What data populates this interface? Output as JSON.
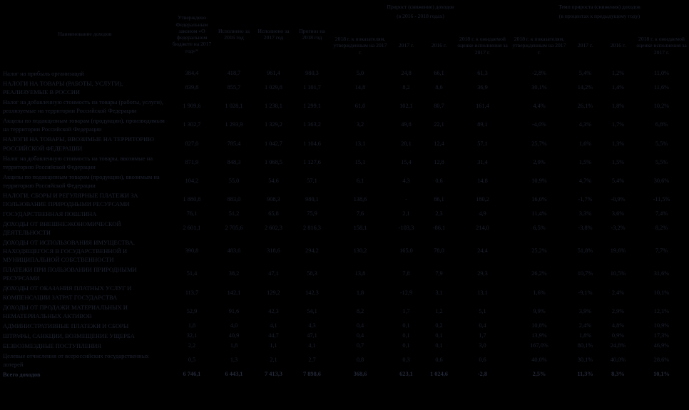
{
  "colors": {
    "background": "#000000",
    "text": "#1c212e"
  },
  "table": {
    "name_col_header": "Наименование доходов",
    "col_headers": {
      "approved_2017": "Утверждено Федеральным законом «О федеральном бюджете на 2017 год»*",
      "executed_2016": "Исполнено за 2016 год",
      "executed_2017": "Исполнено за 2017 год",
      "forecast_2018": "Прогноз на 2018 год"
    },
    "groups": [
      {
        "title": "Прирост (снижение) доходов",
        "subtitle": "(в 2016 - 2018 годах)",
        "subcols": [
          "2018 г. к показателям, утвержденным на 2017 г.",
          "2017 г.",
          "2016 г.",
          "2018 г. к ожидаемой оценке исполнения за 2017 г."
        ]
      },
      {
        "title": "Темп прироста (снижения) доходов",
        "subtitle": "(в процентах к предыдущему году)",
        "subcols": [
          "2018 г. к показателям, утвержденным на 2017 г.",
          "2017 г.",
          "2016 г.",
          "2018 г. к ожидаемой оценке исполнения за 2017 г."
        ]
      }
    ],
    "rows": [
      {
        "name": "Налог на прибыль организаций",
        "bold": false,
        "values": [
          "384,4",
          "418,7",
          "961,4",
          "980,3",
          "5,0",
          "24,8",
          "66,1",
          "61,3",
          "-2,8%",
          "5,4%",
          "1,2%",
          "11,0%"
        ]
      },
      {
        "name": "НАЛОГИ НА ТОВАРЫ (РАБОТЫ, УСЛУГИ), РЕАЛИЗУЕМЫЕ В РОССИИ",
        "bold": false,
        "values": [
          "839,8",
          "855,7",
          "1 029,8",
          "1 101,7",
          "14,8",
          "8,2",
          "8,6",
          "36,9",
          "30,1%",
          "14,2%",
          "1,4%",
          "11,6%"
        ]
      },
      {
        "name": "Налог на добавленную стоимость на товары (работы, услуги), реализуемые на территории Российской Федерации",
        "bold": false,
        "values": [
          "1 909,6",
          "1 028,1",
          "1 238,1",
          "1 299,1",
          "61,0",
          "102,1",
          "80,7",
          "161,4",
          "4,4%",
          "26,1%",
          "1,8%",
          "10,2%"
        ]
      },
      {
        "name": "Акцизы по подакцизным товарам (продукции), производимым на территории Российской Федерации",
        "bold": false,
        "values": [
          "1 302,7",
          "1 293,9",
          "1 329,2",
          "1 363,2",
          "3,2",
          "49,8",
          "22,1",
          "89,1",
          "-4,0%",
          "4,3%",
          "1,7%",
          "6,8%"
        ]
      },
      {
        "name": "НАЛОГИ НА ТОВАРЫ, ВВОЗИМЫЕ НА ТЕРРИТОРИЮ РОССИЙСКОЙ ФЕДЕРАЦИИ",
        "bold": false,
        "values": [
          "827,0",
          "785,4",
          "1 042,7",
          "1 104,6",
          "13,1",
          "28,1",
          "12,4",
          "57,1",
          "25,7%",
          "1,6%",
          "1,3%",
          "5,5%"
        ]
      },
      {
        "name": "Налог на добавленную стоимость на товары, ввозимые на территорию Российской Федерации",
        "bold": false,
        "values": [
          "871,9",
          "848,3",
          "1 068,5",
          "1 127,6",
          "15,1",
          "15,4",
          "12,8",
          "31,4",
          "2,9%",
          "1,5%",
          "1,5%",
          "5,5%"
        ]
      },
      {
        "name": "Акцизы по подакцизным товарам (продукции), ввозимым на территорию Российской Федерации",
        "bold": false,
        "values": [
          "104,2",
          "55,0",
          "54,6",
          "57,1",
          "6,1",
          "4,3",
          "0,6",
          "14,8",
          "10,9%",
          "4,7%",
          "5,4%",
          "30,6%"
        ]
      },
      {
        "name": "НАЛОГИ, СБОРЫ И РЕГУЛЯРНЫЕ ПЛАТЕЖИ ЗА ПОЛЬЗОВАНИЕ ПРИРОДНЫМИ РЕСУРСАМИ",
        "bold": false,
        "values": [
          "1 880,8",
          "883,0",
          "908,3",
          "980,1",
          "138,6",
          "-",
          "86,1",
          "180,2",
          "16,0%",
          "-1,7%",
          "-0,9%",
          "-11,5%"
        ]
      },
      {
        "name": "ГОСУДАРСТВЕННАЯ ПОШЛИНА",
        "bold": false,
        "values": [
          "76,1",
          "51,2",
          "65,8",
          "75,9",
          "7,6",
          "2,1",
          "2,3",
          "4,9",
          "11,4%",
          "3,3%",
          "3,6%",
          "7,4%"
        ]
      },
      {
        "name": "ДОХОДЫ ОТ ВНЕШНЕЭКОНОМИЧЕСКОЙ ДЕЯТЕЛЬНОСТИ",
        "bold": false,
        "values": [
          "2 601,1",
          "2 705,6",
          "2 602,3",
          "2 816,3",
          "158,1",
          "-103,3",
          "-86,1",
          "214,0",
          "6,5%",
          "-3,8%",
          "-3,2%",
          "8,2%"
        ]
      },
      {
        "name": "ДОХОДЫ ОТ ИСПОЛЬЗОВАНИЯ ИМУЩЕСТВА, НАХОДЯЩЕГОСЯ В ГОСУДАРСТВЕННОЙ И МУНИЦИПАЛЬНОЙ СОБСТВЕННОСТИ",
        "bold": false,
        "values": [
          "390,8",
          "483,6",
          "318,6",
          "294,2",
          "130,2",
          "165,0",
          "78,0",
          "24,4",
          "25,2%",
          "51,8%",
          "19,6%",
          "7,7%"
        ]
      },
      {
        "name": "ПЛАТЕЖИ ПРИ ПОЛЬЗОВАНИИ ПРИРОДНЫМИ РЕСУРСАМИ",
        "bold": false,
        "values": [
          "51,4",
          "38,2",
          "47,1",
          "58,3",
          "13,8",
          "7,8",
          "7,9",
          "29,3",
          "26,2%",
          "10,7%",
          "10,5%",
          "31,6%"
        ]
      },
      {
        "name": "ДОХОДЫ ОТ ОКАЗАНИЯ ПЛАТНЫХ УСЛУГ И КОМПЕНСАЦИИ ЗАТРАТ ГОСУДАРСТВА",
        "bold": false,
        "values": [
          "113,7",
          "142,1",
          "129,2",
          "142,3",
          "1,8",
          "-12,9",
          "3,1",
          "13,1",
          "1,6%",
          "-9,1%",
          "2,4%",
          "10,1%"
        ]
      },
      {
        "name": "ДОХОДЫ ОТ ПРОДАЖИ МАТЕРИАЛЬНЫХ И НЕМАТЕРИАЛЬНЫХ АКТИВОВ",
        "bold": false,
        "values": [
          "52,9",
          "91,6",
          "42,3",
          "54,1",
          "8,2",
          "1,7",
          "1,2",
          "5,1",
          "9,9%",
          "3,9%",
          "2,9%",
          "12,1%"
        ]
      },
      {
        "name": "АДМИНИСТРАТИВНЫЕ ПЛАТЕЖИ И СБОРЫ",
        "bold": false,
        "values": [
          "1,8",
          "4,0",
          "4,1",
          "4,3",
          "0,4",
          "0,1",
          "0,2",
          "0,4",
          "10,8%",
          "2,4%",
          "4,8%",
          "10,9%"
        ]
      },
      {
        "name": "ШТРАФЫ, САНКЦИИ, ВОЗМЕЩЕНИЕ УЩЕРБА",
        "bold": false,
        "values": [
          "32,1",
          "40,9",
          "44,7",
          "47,1",
          "0,4",
          "0,1",
          "0,1",
          "1,7",
          "13,9%",
          "1,8%",
          "0,9%",
          "17,3%"
        ]
      },
      {
        "name": "БЕЗВОЗМЕЗДНЫЕ ПОСТУПЛЕНИЯ",
        "bold": false,
        "values": [
          "2,2",
          "1,8",
          "1,1",
          "4,1",
          "0,7",
          "0,1",
          "0,1",
          "3,0",
          "167,0%",
          "80,1%",
          "24,8%",
          "46,9%"
        ]
      },
      {
        "name": "Целевые отчисления от всероссийских государственных лотерей",
        "bold": false,
        "values": [
          "0,5",
          "1,3",
          "2,1",
          "2,7",
          "0,8",
          "0,3",
          "0,6",
          "0,6",
          "40,0%",
          "30,1%",
          "40,0%",
          "28,6%"
        ]
      },
      {
        "name": "Всего доходов",
        "bold": true,
        "values": [
          "6 746,1",
          "6 443,1",
          "7 413,3",
          "7 898,6",
          "368,6",
          "623,1",
          "1 024,6",
          "-2,8",
          "2,5%",
          "11,3%",
          "8,3%",
          "10,1%"
        ]
      }
    ]
  }
}
